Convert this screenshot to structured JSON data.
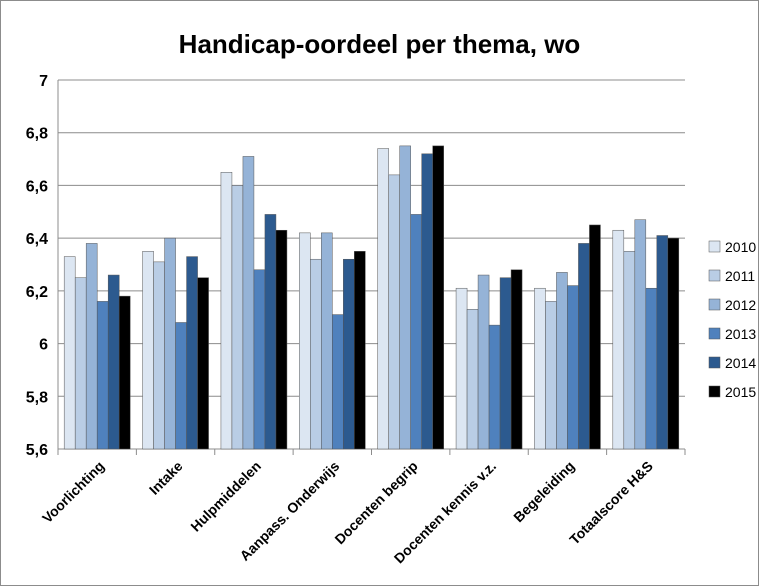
{
  "chart_data": {
    "type": "bar",
    "title": "Handicap-oordeel per thema, wo",
    "xlabel": "",
    "ylabel": "",
    "ylim": [
      5.6,
      7.0
    ],
    "yticks": [
      "5,6",
      "5,8",
      "6",
      "6,2",
      "6,4",
      "6,6",
      "6,8",
      "7"
    ],
    "grid": true,
    "legend_position": "right",
    "categories": [
      "Voorlichting",
      "Intake",
      "Hulpmiddelen",
      "Aanpass. Onderwijs",
      "Docenten begrip",
      "Docenten kennis v.z.",
      "Begeleiding",
      "Totaalscore H&S"
    ],
    "series": [
      {
        "name": "2010",
        "color": "#dce6f2",
        "values": [
          6.33,
          6.35,
          6.65,
          6.42,
          6.74,
          6.21,
          6.21,
          6.43
        ]
      },
      {
        "name": "2011",
        "color": "#b9cde5",
        "values": [
          6.25,
          6.31,
          6.6,
          6.32,
          6.64,
          6.13,
          6.16,
          6.35
        ]
      },
      {
        "name": "2012",
        "color": "#95b3d7",
        "values": [
          6.38,
          6.4,
          6.71,
          6.42,
          6.75,
          6.26,
          6.27,
          6.47
        ]
      },
      {
        "name": "2013",
        "color": "#4f81bd",
        "values": [
          6.16,
          6.08,
          6.28,
          6.11,
          6.49,
          6.07,
          6.22,
          6.21
        ]
      },
      {
        "name": "2014",
        "color": "#2c5a8f",
        "values": [
          6.26,
          6.33,
          6.49,
          6.32,
          6.72,
          6.25,
          6.38,
          6.41
        ]
      },
      {
        "name": "2015",
        "color": "#000000",
        "values": [
          6.18,
          6.25,
          6.43,
          6.35,
          6.75,
          6.28,
          6.45,
          6.4
        ]
      }
    ]
  }
}
